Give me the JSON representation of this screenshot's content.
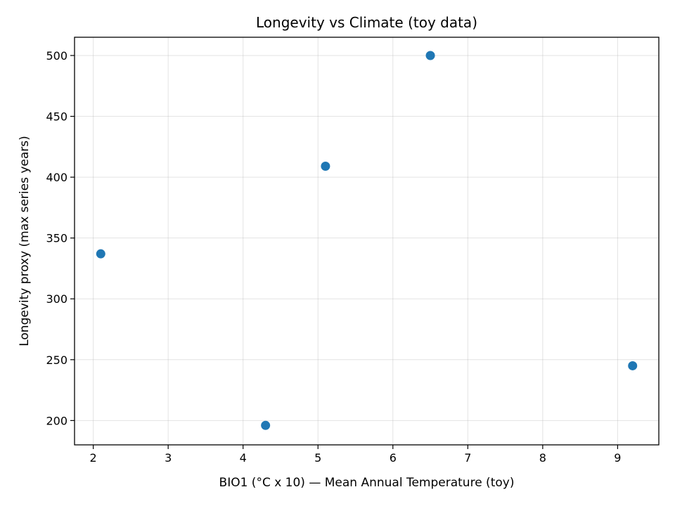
{
  "chart_data": {
    "type": "scatter",
    "title": "Longevity vs Climate (toy data)",
    "xlabel": "BIO1 (°C x 10) — Mean Annual Temperature (toy)",
    "ylabel": "Longevity proxy (max series years)",
    "xlim": [
      1.75,
      9.55
    ],
    "ylim": [
      180,
      515
    ],
    "xticks": [
      2,
      3,
      4,
      5,
      6,
      7,
      8,
      9
    ],
    "yticks": [
      200,
      250,
      300,
      350,
      400,
      450,
      500
    ],
    "grid": true,
    "series": [
      {
        "color": "#1f77b4",
        "points": [
          {
            "x": 2.1,
            "y": 337
          },
          {
            "x": 4.3,
            "y": 196
          },
          {
            "x": 5.1,
            "y": 409
          },
          {
            "x": 6.5,
            "y": 500
          },
          {
            "x": 9.2,
            "y": 245
          }
        ]
      }
    ]
  }
}
